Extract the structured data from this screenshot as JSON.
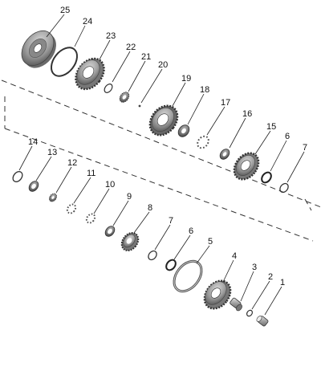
{
  "diagram": {
    "callouts": [
      {
        "id": "c25",
        "label": "25"
      },
      {
        "id": "c24",
        "label": "24"
      },
      {
        "id": "c23",
        "label": "23"
      },
      {
        "id": "c22",
        "label": "22"
      },
      {
        "id": "c21",
        "label": "21"
      },
      {
        "id": "c20",
        "label": "20"
      },
      {
        "id": "c19",
        "label": "19"
      },
      {
        "id": "c18",
        "label": "18"
      },
      {
        "id": "c17",
        "label": "17"
      },
      {
        "id": "c16",
        "label": "16"
      },
      {
        "id": "c15",
        "label": "15"
      },
      {
        "id": "c6a",
        "label": "6"
      },
      {
        "id": "c7a",
        "label": "7"
      },
      {
        "id": "c14",
        "label": "14"
      },
      {
        "id": "c13",
        "label": "13"
      },
      {
        "id": "c12",
        "label": "12"
      },
      {
        "id": "c11",
        "label": "11"
      },
      {
        "id": "c10",
        "label": "10"
      },
      {
        "id": "c9",
        "label": "9"
      },
      {
        "id": "c8",
        "label": "8"
      },
      {
        "id": "c7b",
        "label": "7"
      },
      {
        "id": "c6b",
        "label": "6"
      },
      {
        "id": "c5",
        "label": "5"
      },
      {
        "id": "c4",
        "label": "4"
      },
      {
        "id": "c3",
        "label": "3"
      },
      {
        "id": "c2",
        "label": "2"
      },
      {
        "id": "c1",
        "label": "1"
      }
    ]
  }
}
